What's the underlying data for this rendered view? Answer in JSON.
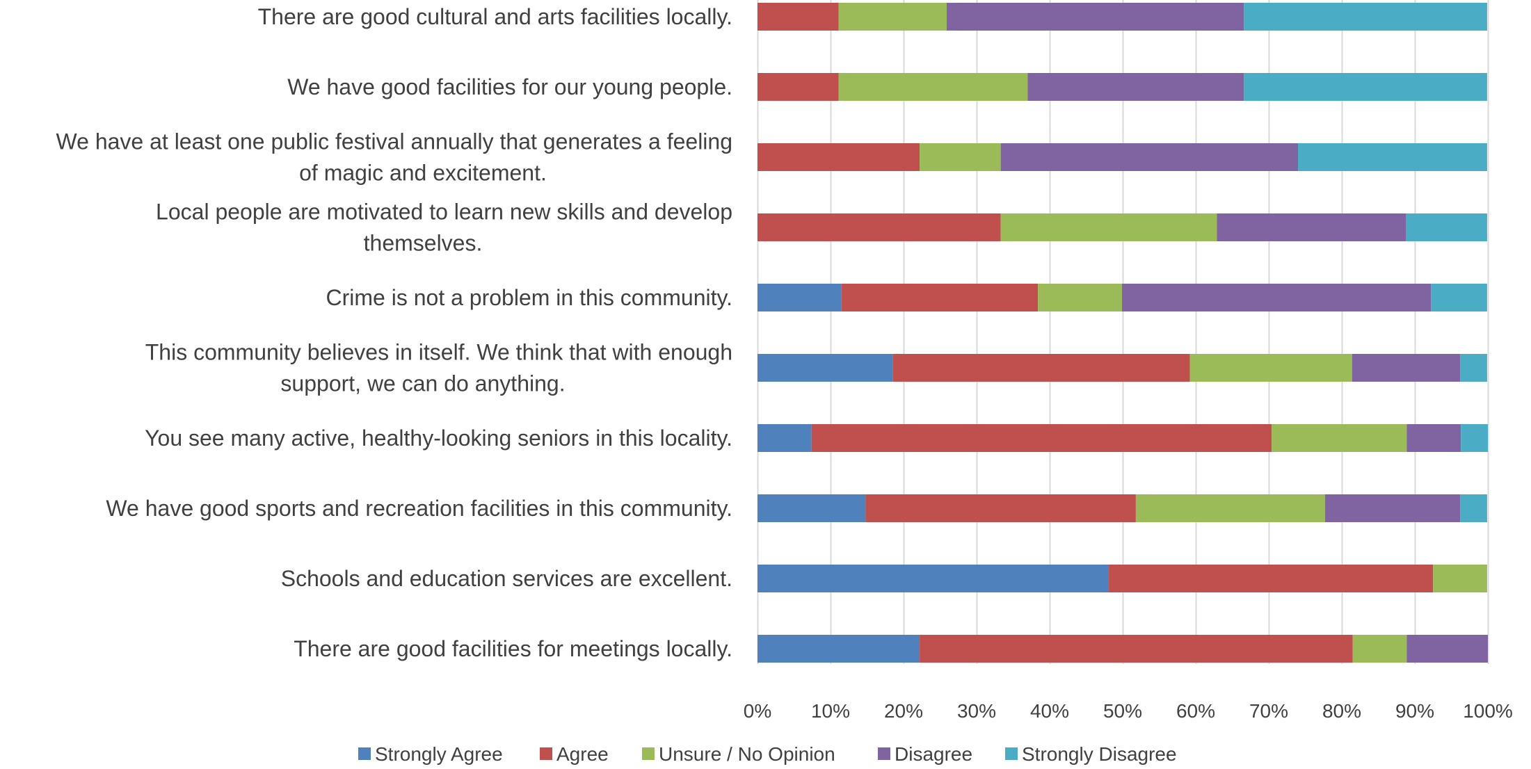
{
  "chart_data": {
    "type": "bar",
    "orientation": "horizontal",
    "stacked": "percent",
    "title": "",
    "xlabel": "",
    "ylabel": "",
    "xlim": [
      0,
      100
    ],
    "x_ticks": [
      "0%",
      "10%",
      "20%",
      "30%",
      "40%",
      "50%",
      "60%",
      "70%",
      "80%",
      "90%",
      "100%"
    ],
    "grid": "vertical",
    "legend_position": "bottom",
    "categories": [
      [
        "There are good cultural and arts facilities locally."
      ],
      [
        "We have good facilities for our young people."
      ],
      [
        "We have at least one public festival annually that generates a feeling",
        "of magic and excitement."
      ],
      [
        "Local people are motivated to learn new skills and develop",
        "themselves."
      ],
      [
        "Crime is not a problem in this community."
      ],
      [
        "This community believes in itself. We think that with enough",
        "support, we can do anything."
      ],
      [
        "You see many active, healthy-looking seniors in this locality."
      ],
      [
        "We have good sports and recreation facilities in this community."
      ],
      [
        "Schools and education services are excellent."
      ],
      [
        "There are good facilities for meetings locally."
      ]
    ],
    "series": [
      {
        "name": "Strongly Agree",
        "color": "#4F81BD",
        "values": [
          0,
          0,
          0,
          0,
          11.5,
          18.5,
          7.4,
          14.8,
          48.1,
          22.2
        ]
      },
      {
        "name": "Agree",
        "color": "#C0504D",
        "values": [
          11.1,
          11.1,
          22.2,
          33.3,
          26.9,
          40.7,
          63.0,
          37.0,
          44.4,
          59.3
        ]
      },
      {
        "name": "Unsure / No Opinion",
        "color": "#9BBB59",
        "values": [
          14.8,
          25.9,
          11.1,
          29.6,
          11.5,
          22.2,
          18.5,
          25.9,
          7.4,
          7.4
        ]
      },
      {
        "name": "Disagree",
        "color": "#8064A2",
        "values": [
          40.7,
          29.6,
          40.7,
          25.9,
          42.3,
          14.8,
          7.4,
          18.5,
          0,
          11.1
        ]
      },
      {
        "name": "Strongly Disagree",
        "color": "#4BACC6",
        "values": [
          33.3,
          33.3,
          25.9,
          11.1,
          7.7,
          3.7,
          3.7,
          3.7,
          0,
          0
        ]
      }
    ]
  }
}
